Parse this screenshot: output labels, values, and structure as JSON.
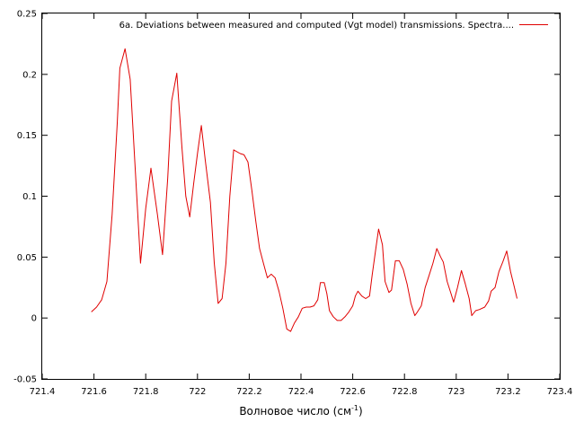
{
  "chart_data": {
    "type": "line",
    "legend_label": "6a. Deviations between measured and computed (Vgt model) transmissions. Spectra....",
    "legend_position": "top-right",
    "xlabel_main": "Волновое число (см",
    "xlabel_sup": "-1",
    "xlabel_close": ")",
    "xlim": [
      721.4,
      723.4
    ],
    "ylim": [
      -0.05,
      0.25
    ],
    "x_ticks": [
      "721.4",
      "721.6",
      "721.8",
      "722",
      "722.2",
      "722.4",
      "722.6",
      "722.8",
      "723",
      "723.2",
      "723.4"
    ],
    "y_ticks": [
      "-0.05",
      "0",
      "0.05",
      "0.1",
      "0.15",
      "0.2",
      "0.25"
    ],
    "grid": false,
    "colors": {
      "series": "#e00000",
      "axis": "#000000"
    },
    "series": [
      {
        "points": [
          [
            721.59,
            0.005
          ],
          [
            721.61,
            0.009
          ],
          [
            721.63,
            0.015
          ],
          [
            721.65,
            0.03
          ],
          [
            721.67,
            0.085
          ],
          [
            721.69,
            0.16
          ],
          [
            721.7,
            0.205
          ],
          [
            721.72,
            0.221
          ],
          [
            721.74,
            0.196
          ],
          [
            721.76,
            0.12
          ],
          [
            721.78,
            0.045
          ],
          [
            721.8,
            0.09
          ],
          [
            721.82,
            0.123
          ],
          [
            721.845,
            0.085
          ],
          [
            721.865,
            0.052
          ],
          [
            721.885,
            0.115
          ],
          [
            721.9,
            0.178
          ],
          [
            721.92,
            0.201
          ],
          [
            721.94,
            0.14
          ],
          [
            721.955,
            0.1
          ],
          [
            721.97,
            0.083
          ],
          [
            721.985,
            0.11
          ],
          [
            722.0,
            0.135
          ],
          [
            722.015,
            0.158
          ],
          [
            722.03,
            0.13
          ],
          [
            722.05,
            0.095
          ],
          [
            722.065,
            0.045
          ],
          [
            722.08,
            0.012
          ],
          [
            722.095,
            0.016
          ],
          [
            722.11,
            0.045
          ],
          [
            722.125,
            0.1
          ],
          [
            722.14,
            0.138
          ],
          [
            722.165,
            0.135
          ],
          [
            722.18,
            0.134
          ],
          [
            722.195,
            0.128
          ],
          [
            722.21,
            0.105
          ],
          [
            722.225,
            0.08
          ],
          [
            722.24,
            0.057
          ],
          [
            722.255,
            0.045
          ],
          [
            722.27,
            0.033
          ],
          [
            722.285,
            0.036
          ],
          [
            722.3,
            0.033
          ],
          [
            722.315,
            0.022
          ],
          [
            722.33,
            0.008
          ],
          [
            722.345,
            -0.009
          ],
          [
            722.36,
            -0.011
          ],
          [
            722.375,
            -0.004
          ],
          [
            722.39,
            0.001
          ],
          [
            722.405,
            0.008
          ],
          [
            722.42,
            0.009
          ],
          [
            722.435,
            0.009
          ],
          [
            722.45,
            0.01
          ],
          [
            722.465,
            0.015
          ],
          [
            722.475,
            0.029
          ],
          [
            722.49,
            0.029
          ],
          [
            722.5,
            0.02
          ],
          [
            722.51,
            0.006
          ],
          [
            722.525,
            0.001
          ],
          [
            722.54,
            -0.002
          ],
          [
            722.555,
            -0.002
          ],
          [
            722.57,
            0.001
          ],
          [
            722.585,
            0.005
          ],
          [
            722.6,
            0.01
          ],
          [
            722.61,
            0.018
          ],
          [
            722.62,
            0.022
          ],
          [
            722.635,
            0.018
          ],
          [
            722.65,
            0.016
          ],
          [
            722.665,
            0.018
          ],
          [
            722.675,
            0.035
          ],
          [
            722.69,
            0.058
          ],
          [
            722.7,
            0.073
          ],
          [
            722.715,
            0.06
          ],
          [
            722.725,
            0.03
          ],
          [
            722.74,
            0.021
          ],
          [
            722.75,
            0.023
          ],
          [
            722.765,
            0.047
          ],
          [
            722.78,
            0.047
          ],
          [
            722.795,
            0.04
          ],
          [
            722.81,
            0.028
          ],
          [
            722.825,
            0.012
          ],
          [
            722.84,
            0.002
          ],
          [
            722.85,
            0.005
          ],
          [
            722.865,
            0.01
          ],
          [
            722.88,
            0.025
          ],
          [
            722.895,
            0.035
          ],
          [
            722.91,
            0.045
          ],
          [
            722.925,
            0.057
          ],
          [
            722.94,
            0.05
          ],
          [
            722.95,
            0.046
          ],
          [
            722.965,
            0.03
          ],
          [
            722.98,
            0.02
          ],
          [
            722.99,
            0.013
          ],
          [
            723.005,
            0.025
          ],
          [
            723.02,
            0.039
          ],
          [
            723.035,
            0.028
          ],
          [
            723.05,
            0.016
          ],
          [
            723.06,
            0.002
          ],
          [
            723.075,
            0.006
          ],
          [
            723.09,
            0.007
          ],
          [
            723.11,
            0.009
          ],
          [
            723.125,
            0.014
          ],
          [
            723.135,
            0.022
          ],
          [
            723.15,
            0.025
          ],
          [
            723.165,
            0.038
          ],
          [
            723.18,
            0.046
          ],
          [
            723.195,
            0.055
          ],
          [
            723.21,
            0.038
          ],
          [
            723.225,
            0.025
          ],
          [
            723.235,
            0.016
          ]
        ]
      }
    ]
  }
}
